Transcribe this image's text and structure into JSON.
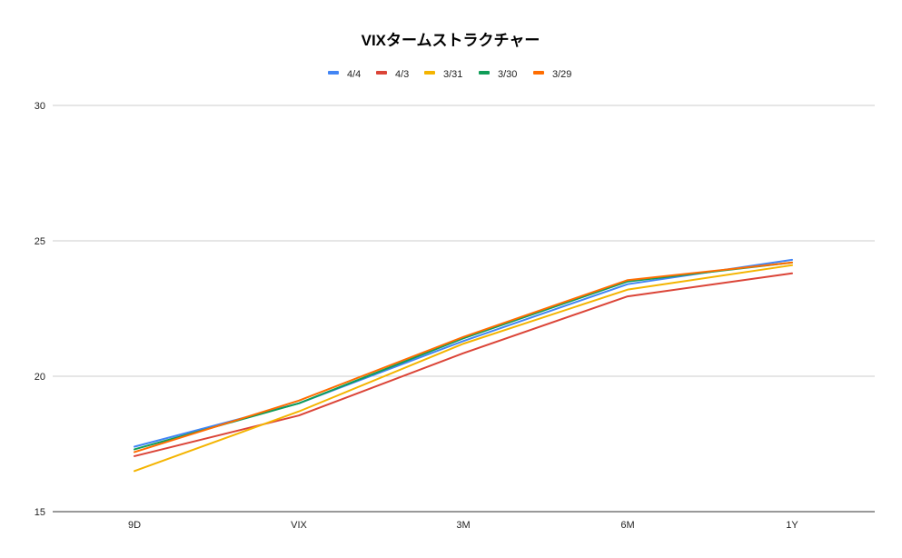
{
  "chart_data": {
    "type": "line",
    "title": "VIXタームストラクチャー",
    "xlabel": "",
    "ylabel": "",
    "categories": [
      "9D",
      "VIX",
      "3M",
      "6M",
      "1Y"
    ],
    "ylim": [
      15,
      30
    ],
    "yticks": [
      15,
      20,
      25,
      30
    ],
    "grid": true,
    "legend_position": "top",
    "series": [
      {
        "name": "4/4",
        "color": "#4285F4",
        "values": [
          17.4,
          19.0,
          21.3,
          23.4,
          24.3
        ]
      },
      {
        "name": "4/3",
        "color": "#DB4437",
        "values": [
          17.05,
          18.55,
          20.85,
          22.95,
          23.8
        ]
      },
      {
        "name": "3/31",
        "color": "#F4B400",
        "values": [
          16.5,
          18.7,
          21.2,
          23.2,
          24.1
        ]
      },
      {
        "name": "3/30",
        "color": "#0F9D58",
        "values": [
          17.3,
          19.0,
          21.4,
          23.5,
          24.2
        ]
      },
      {
        "name": "3/29",
        "color": "#FF6D01",
        "values": [
          17.2,
          19.1,
          21.45,
          23.55,
          24.2
        ]
      }
    ]
  }
}
